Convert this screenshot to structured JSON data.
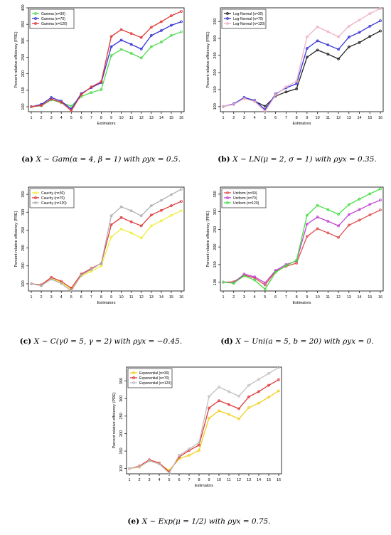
{
  "chart_data": [
    {
      "type": "line",
      "caption_label": "(a)",
      "caption_text": "X ∼ Gam(α = 4, β = 1) with ρyx = 0.5.",
      "xlabel": "Estimators",
      "ylabel": "Percent relative efficiency (PRE)",
      "x": [
        1,
        2,
        3,
        4,
        5,
        6,
        7,
        8,
        9,
        10,
        11,
        12,
        13,
        14,
        15,
        16
      ],
      "xticks": [
        "1",
        "2",
        "3",
        "4",
        "5",
        "6",
        "7",
        "8",
        "9",
        "10",
        "11",
        "12",
        "13",
        "14",
        "15",
        "16"
      ],
      "yticks": [
        100,
        150,
        200,
        250,
        300,
        350,
        400
      ],
      "ylim": [
        85,
        400
      ],
      "legend_position": "top-left",
      "series": [
        {
          "name": "Gamma (n=30)",
          "color": "#4fdc4f",
          "values": [
            100,
            103,
            121,
            112,
            102,
            131,
            143,
            152,
            255,
            274,
            262,
            248,
            282,
            296,
            316,
            327
          ]
        },
        {
          "name": "Gamma (n=70)",
          "color": "#3535d8",
          "values": [
            100,
            107,
            128,
            117,
            93,
            140,
            158,
            173,
            282,
            302,
            289,
            275,
            316,
            331,
            347,
            358
          ]
        },
        {
          "name": "Gamma (n=120)",
          "color": "#e03838",
          "values": [
            100,
            104,
            123,
            114,
            88,
            137,
            160,
            176,
            313,
            334,
            322,
            310,
            341,
            358,
            376,
            389
          ]
        }
      ]
    },
    {
      "type": "line",
      "caption_label": "(b)",
      "caption_text": "X ∼ LN(μ = 2, σ = 1) with ρyx = 0.35.",
      "xlabel": "Estimators",
      "ylabel": "Percent relative efficiency (PRE)",
      "x": [
        1,
        2,
        3,
        4,
        5,
        6,
        7,
        8,
        9,
        10,
        11,
        12,
        13,
        14,
        15,
        16
      ],
      "xticks": [
        "1",
        "2",
        "3",
        "4",
        "5",
        "6",
        "7",
        "8",
        "9",
        "10",
        "11",
        "12",
        "13",
        "14",
        "15",
        "16"
      ],
      "yticks": [
        100,
        150,
        200,
        250,
        300,
        350
      ],
      "ylim": [
        85,
        390
      ],
      "legend_position": "top-left",
      "series": [
        {
          "name": "Log-Normal (n=30)",
          "color": "#222222",
          "values": [
            100,
            107,
            125,
            116,
            101,
            131,
            143,
            152,
            245,
            266,
            254,
            240,
            275,
            288,
            306,
            322
          ]
        },
        {
          "name": "Log-Normal (n=70)",
          "color": "#3535d8",
          "values": [
            100,
            108,
            127,
            118,
            91,
            137,
            155,
            167,
            271,
            293,
            281,
            268,
            304,
            318,
            336,
            352
          ]
        },
        {
          "name": "Log-Normal (n=120)",
          "color": "#f0b0c8",
          "values": [
            100,
            106,
            124,
            115,
            86,
            134,
            158,
            174,
            305,
            334,
            320,
            305,
            336,
            354,
            373,
            388
          ]
        }
      ]
    },
    {
      "type": "line",
      "caption_label": "(c)",
      "caption_text": "X ∼ C(γ0 = 5, γ = 2) with ρyx = −0.45.",
      "xlabel": "Estimators",
      "ylabel": "Percent relative efficiency (PRE)",
      "x": [
        1,
        2,
        3,
        4,
        5,
        6,
        7,
        8,
        9,
        10,
        11,
        12,
        13,
        14,
        15,
        16
      ],
      "xticks": [
        "1",
        "2",
        "3",
        "4",
        "5",
        "6",
        "7",
        "8",
        "9",
        "10",
        "11",
        "12",
        "13",
        "14",
        "15",
        "16"
      ],
      "yticks": [
        100,
        150,
        200,
        250,
        300,
        350
      ],
      "ylim": [
        80,
        370
      ],
      "legend_position": "top-left",
      "series": [
        {
          "name": "Cauchy (n=30)",
          "color": "#eeee40",
          "values": [
            100,
            95,
            115,
            104,
            85,
            122,
            135,
            150,
            231,
            253,
            242,
            228,
            262,
            276,
            291,
            304
          ]
        },
        {
          "name": "Cauchy (n=70)",
          "color": "#e03838",
          "values": [
            100,
            97,
            118,
            107,
            88,
            127,
            143,
            157,
            265,
            285,
            273,
            262,
            292,
            305,
            318,
            330
          ]
        },
        {
          "name": "Cauchy (n=120)",
          "color": "#b0b0b0",
          "values": [
            100,
            95,
            113,
            101,
            80,
            124,
            140,
            158,
            290,
            315,
            304,
            290,
            318,
            333,
            349,
            364
          ]
        }
      ]
    },
    {
      "type": "line",
      "caption_label": "(d)",
      "caption_text": "X ∼ Uni(a = 5, b = 20) with ρyx = 0.",
      "xlabel": "Estimators",
      "ylabel": "Percent relative efficiency (PRE)",
      "x": [
        1,
        2,
        3,
        4,
        5,
        6,
        7,
        8,
        9,
        10,
        11,
        12,
        13,
        14,
        15,
        16
      ],
      "xticks": [
        "1",
        "2",
        "3",
        "4",
        "5",
        "6",
        "7",
        "8",
        "9",
        "10",
        "11",
        "12",
        "13",
        "14",
        "15",
        "16"
      ],
      "yticks": [
        100,
        150,
        200,
        250,
        300,
        350
      ],
      "ylim": [
        75,
        370
      ],
      "legend_position": "top-left",
      "series": [
        {
          "name": "Uniform (n=30)",
          "color": "#e05050",
          "values": [
            100,
            101,
            120,
            112,
            92,
            131,
            145,
            154,
            230,
            252,
            240,
            227,
            262,
            276,
            291,
            305
          ]
        },
        {
          "name": "Uniform (n=70)",
          "color": "#c040d0",
          "values": [
            100,
            98,
            123,
            115,
            98,
            133,
            150,
            160,
            265,
            285,
            273,
            260,
            292,
            306,
            321,
            333
          ]
        },
        {
          "name": "Uniform (n=120)",
          "color": "#40e040",
          "values": [
            100,
            97,
            118,
            106,
            80,
            128,
            147,
            162,
            290,
            318,
            306,
            293,
            320,
            336,
            351,
            365
          ]
        }
      ]
    },
    {
      "type": "line",
      "caption_label": "(e)",
      "caption_text": "X ∼ Exp(μ = 1/2) with ρyx = 0.75.",
      "xlabel": "Estimators",
      "ylabel": "Percent relative efficiency (PRE)",
      "x": [
        1,
        2,
        3,
        4,
        5,
        6,
        7,
        8,
        9,
        10,
        11,
        12,
        13,
        14,
        15,
        16
      ],
      "xticks": [
        "1",
        "2",
        "3",
        "4",
        "5",
        "6",
        "7",
        "8",
        "9",
        "10",
        "11",
        "12",
        "13",
        "14",
        "15",
        "16"
      ],
      "yticks": [
        100,
        150,
        200,
        250,
        300,
        350
      ],
      "ylim": [
        85,
        390
      ],
      "legend_position": "top-left",
      "series": [
        {
          "name": "Exponential (n=30)",
          "color": "#f0d020",
          "values": [
            100,
            104,
            122,
            113,
            95,
            128,
            138,
            152,
            244,
            265,
            255,
            242,
            274,
            287,
            304,
            322
          ]
        },
        {
          "name": "Exponential (n=70)",
          "color": "#e03838",
          "values": [
            100,
            107,
            125,
            116,
            90,
            133,
            152,
            167,
            273,
            294,
            283,
            271,
            305,
            320,
            338,
            354
          ]
        },
        {
          "name": "Exponential (n=120)",
          "color": "#c0c0c0",
          "values": [
            100,
            105,
            122,
            113,
            87,
            138,
            156,
            174,
            306,
            333,
            320,
            307,
            338,
            355,
            372,
            389
          ]
        }
      ]
    }
  ]
}
